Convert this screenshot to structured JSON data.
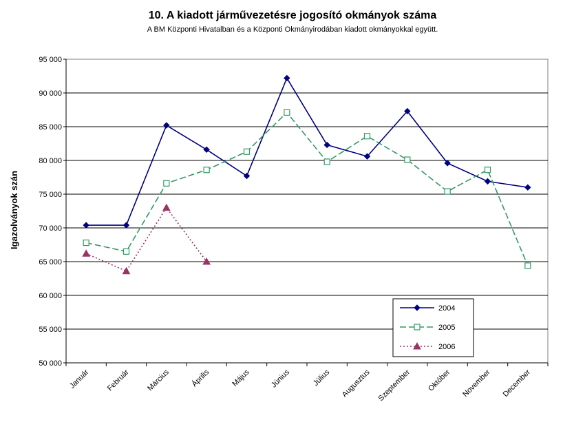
{
  "chart_data": {
    "type": "line",
    "title": "10. A  kiadott járművezetésre  jogosító okmányok száma",
    "subtitle": "A BM Központi Hivatalban és a Központi Okmányirodában kiadott okmányokkal együtt.",
    "ylabel": "Igazolványok szán",
    "xlabel": "",
    "categories": [
      "Január",
      "Február",
      "Március",
      "Április",
      "Május",
      "Június",
      "Július",
      "Augusztus",
      "Szeptember",
      "Október",
      "November",
      "December"
    ],
    "yticks": [
      "50 000",
      "55 000",
      "60 000",
      "65 000",
      "70 000",
      "75 000",
      "80 000",
      "85 000",
      "90 000",
      "95 000"
    ],
    "ylim": [
      50000,
      95000
    ],
    "grid": true,
    "legend_position": "lower-right",
    "series": [
      {
        "name": "2004",
        "color": "#000080",
        "marker": "filled-diamond",
        "line": "solid",
        "values": [
          70400,
          70400,
          85200,
          81600,
          77700,
          92200,
          82300,
          80600,
          87300,
          79600,
          76900,
          76000
        ]
      },
      {
        "name": "2005",
        "color": "#339966",
        "marker": "open-square",
        "line": "dashed",
        "values": [
          67800,
          66500,
          76600,
          78600,
          81300,
          87100,
          79800,
          83600,
          80100,
          75400,
          78600,
          64400
        ]
      },
      {
        "name": "2006",
        "color": "#993366",
        "marker": "filled-triangle",
        "line": "dotted",
        "values": [
          66200,
          63600,
          73000,
          65000,
          null,
          null,
          null,
          null,
          null,
          null,
          null,
          null
        ]
      }
    ]
  }
}
